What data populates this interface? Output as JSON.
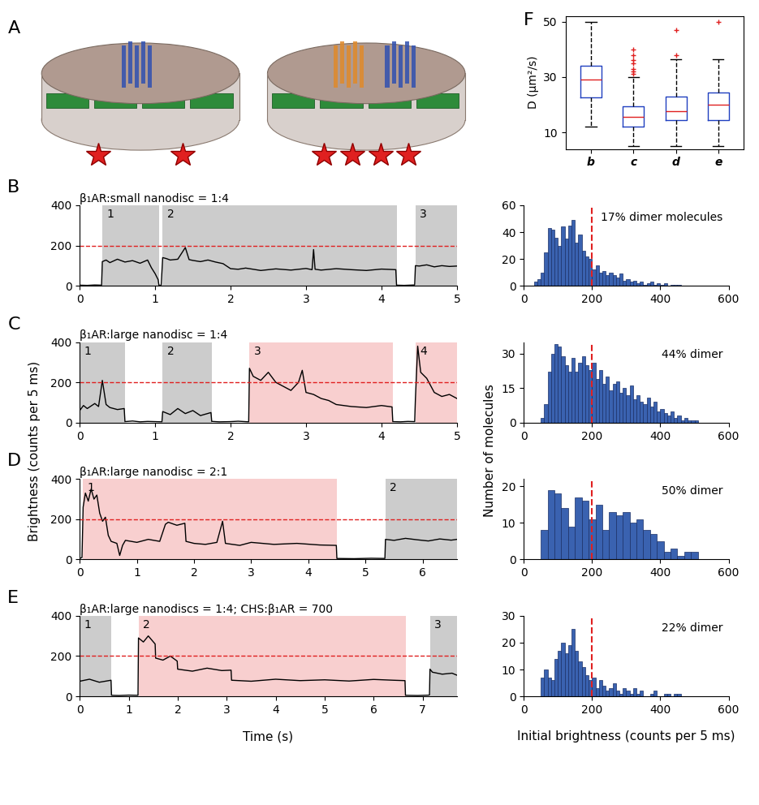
{
  "chart_data": [
    {
      "type": "diagram",
      "panel": "A"
    },
    {
      "type": "box",
      "panel": "F",
      "categories": [
        "b",
        "c",
        "d",
        "e"
      ],
      "boxes": [
        {
          "low": 12,
          "q1": 22.5,
          "median": 29,
          "q3": 34,
          "high": 50,
          "outliers": []
        },
        {
          "low": 5,
          "q1": 12,
          "median": 15.5,
          "q3": 19.5,
          "high": 30,
          "outliers": [
            31,
            32,
            33,
            35,
            36,
            38,
            40
          ]
        },
        {
          "low": 5,
          "q1": 14.5,
          "median": 17.5,
          "q3": 23,
          "high": 36.5,
          "outliers": [
            38,
            47
          ]
        },
        {
          "low": 5,
          "q1": 14.5,
          "median": 20,
          "q3": 24.5,
          "high": 36.5,
          "outliers": [
            50
          ]
        }
      ],
      "ylabel": "D (μm²/s)",
      "ylim": [
        4,
        52
      ],
      "yticks": [
        10,
        30,
        50
      ]
    },
    {
      "type": "line",
      "panel": "B",
      "title": "β₁AR:small nanodisc = 1:4",
      "color": "#000000",
      "threshold": 200,
      "x": [
        0,
        0.1,
        0.2,
        0.29,
        0.3,
        0.35,
        0.4,
        0.5,
        0.6,
        0.7,
        0.8,
        0.9,
        0.95,
        1.0,
        1.04,
        1.05,
        1.08,
        1.1,
        1.15,
        1.2,
        1.3,
        1.4,
        1.45,
        1.5,
        1.6,
        1.7,
        1.8,
        1.9,
        2.0,
        2.1,
        2.2,
        2.4,
        2.6,
        2.8,
        3.0,
        3.08,
        3.1,
        3.12,
        3.2,
        3.4,
        3.6,
        3.8,
        4.0,
        4.19,
        4.2,
        4.3,
        4.44,
        4.45,
        4.5,
        4.6,
        4.7,
        4.8,
        4.9,
        5.0
      ],
      "values": [
        3,
        2,
        4,
        3,
        120,
        128,
        115,
        132,
        118,
        125,
        112,
        128,
        90,
        60,
        30,
        3,
        2,
        140,
        135,
        128,
        132,
        190,
        130,
        126,
        120,
        128,
        118,
        110,
        85,
        82,
        88,
        76,
        84,
        78,
        86,
        80,
        180,
        82,
        78,
        85,
        80,
        76,
        83,
        80,
        3,
        2,
        4,
        100,
        98,
        104,
        94,
        100,
        96,
        98
      ],
      "regions": [
        {
          "start": 0.3,
          "end": 1.05,
          "label": "1",
          "color": "#cccccc"
        },
        {
          "start": 1.1,
          "end": 4.2,
          "label": "2",
          "color": "#cccccc"
        },
        {
          "start": 4.45,
          "end": 5.0,
          "label": "3",
          "color": "#cccccc"
        }
      ],
      "xlim": [
        0,
        5
      ],
      "xticks": [
        0,
        1,
        2,
        3,
        4,
        5
      ],
      "ylim": [
        0,
        400
      ],
      "yticks": [
        0,
        200,
        400
      ]
    },
    {
      "type": "line",
      "panel": "C",
      "title": "β₁AR:large nanodisc = 1:4",
      "color": "#000000",
      "threshold": 200,
      "x": [
        0,
        0.05,
        0.1,
        0.2,
        0.25,
        0.3,
        0.35,
        0.4,
        0.5,
        0.59,
        0.6,
        0.7,
        0.8,
        0.9,
        1.0,
        1.09,
        1.1,
        1.2,
        1.3,
        1.4,
        1.5,
        1.6,
        1.74,
        1.75,
        1.85,
        2.0,
        2.1,
        2.24,
        2.25,
        2.3,
        2.4,
        2.5,
        2.6,
        2.7,
        2.8,
        2.9,
        2.95,
        3.0,
        3.1,
        3.2,
        3.3,
        3.4,
        3.6,
        3.8,
        4.0,
        4.14,
        4.15,
        4.25,
        4.35,
        4.44,
        4.45,
        4.48,
        4.52,
        4.6,
        4.7,
        4.8,
        4.9,
        5.0
      ],
      "values": [
        60,
        85,
        70,
        95,
        80,
        210,
        90,
        75,
        65,
        70,
        5,
        8,
        4,
        6,
        5,
        4,
        55,
        40,
        70,
        45,
        60,
        35,
        50,
        6,
        4,
        5,
        7,
        4,
        270,
        230,
        210,
        250,
        200,
        180,
        160,
        200,
        260,
        150,
        140,
        120,
        110,
        90,
        80,
        75,
        85,
        78,
        5,
        4,
        6,
        5,
        120,
        380,
        250,
        220,
        150,
        130,
        140,
        120
      ],
      "regions": [
        {
          "start": 0,
          "end": 0.6,
          "label": "1",
          "color": "#cccccc"
        },
        {
          "start": 1.1,
          "end": 1.75,
          "label": "2",
          "color": "#cccccc"
        },
        {
          "start": 2.25,
          "end": 4.15,
          "label": "3",
          "color": "#f8cfcf"
        },
        {
          "start": 4.45,
          "end": 5.0,
          "label": "4",
          "color": "#f8cfcf"
        }
      ],
      "xlim": [
        0,
        5
      ],
      "xticks": [
        0,
        1,
        2,
        3,
        4,
        5
      ],
      "ylim": [
        0,
        400
      ],
      "yticks": [
        0,
        200,
        400
      ]
    },
    {
      "type": "line",
      "panel": "D",
      "title": "β₁AR:large nanodisc = 2:1",
      "color": "#000000",
      "threshold": 200,
      "x": [
        0,
        0.04,
        0.06,
        0.1,
        0.15,
        0.2,
        0.25,
        0.3,
        0.35,
        0.4,
        0.45,
        0.5,
        0.55,
        0.6,
        0.65,
        0.7,
        0.75,
        0.8,
        1.0,
        1.2,
        1.4,
        1.5,
        1.55,
        1.7,
        1.84,
        1.86,
        2.0,
        2.2,
        2.4,
        2.5,
        2.55,
        2.8,
        3.0,
        3.4,
        3.8,
        4.2,
        4.49,
        4.5,
        4.8,
        5.1,
        5.34,
        5.35,
        5.5,
        5.7,
        5.9,
        6.1,
        6.3,
        6.5,
        6.6
      ],
      "values": [
        5,
        10,
        260,
        330,
        290,
        350,
        300,
        320,
        230,
        190,
        210,
        120,
        90,
        85,
        80,
        20,
        70,
        95,
        85,
        100,
        90,
        175,
        185,
        170,
        180,
        90,
        80,
        75,
        85,
        190,
        80,
        70,
        85,
        75,
        80,
        72,
        70,
        5,
        4,
        6,
        5,
        100,
        95,
        105,
        98,
        92,
        102,
        96,
        100
      ],
      "regions": [
        {
          "start": 0.05,
          "end": 4.5,
          "label": "1",
          "color": "#f8cfcf"
        },
        {
          "start": 5.35,
          "end": 6.6,
          "label": "2",
          "color": "#cccccc"
        }
      ],
      "xlim": [
        0,
        6.6
      ],
      "xticks": [
        0,
        1,
        2,
        3,
        4,
        5,
        6
      ],
      "ylim": [
        0,
        400
      ],
      "yticks": [
        0,
        200,
        400
      ]
    },
    {
      "type": "line",
      "panel": "E",
      "title": "β₁AR:large nanodiscs = 1:4; CHS:β₁AR = 700",
      "color": "#000000",
      "threshold": 200,
      "x": [
        0,
        0.2,
        0.4,
        0.64,
        0.65,
        0.8,
        1.0,
        1.19,
        1.2,
        1.3,
        1.4,
        1.54,
        1.55,
        1.7,
        1.85,
        1.99,
        2.0,
        2.3,
        2.6,
        2.9,
        3.09,
        3.1,
        3.5,
        4.0,
        4.5,
        5.0,
        5.5,
        6.0,
        6.4,
        6.64,
        6.65,
        6.9,
        7.14,
        7.15,
        7.2,
        7.4,
        7.6,
        7.7
      ],
      "values": [
        75,
        85,
        70,
        80,
        5,
        4,
        6,
        5,
        290,
        270,
        300,
        260,
        190,
        180,
        200,
        175,
        135,
        125,
        140,
        128,
        130,
        80,
        75,
        85,
        78,
        82,
        76,
        84,
        80,
        78,
        5,
        4,
        6,
        135,
        120,
        110,
        115,
        105
      ],
      "regions": [
        {
          "start": 0,
          "end": 0.65,
          "label": "1",
          "color": "#cccccc"
        },
        {
          "start": 1.2,
          "end": 6.65,
          "label": "2",
          "color": "#f8cfcf"
        },
        {
          "start": 7.15,
          "end": 7.7,
          "label": "3",
          "color": "#cccccc"
        }
      ],
      "xlim": [
        0,
        7.7
      ],
      "xticks": [
        0,
        1,
        2,
        3,
        4,
        5,
        6,
        7
      ],
      "ylim": [
        0,
        400
      ],
      "yticks": [
        0,
        200,
        400
      ]
    },
    {
      "type": "histogram",
      "annotation": "17% dimer molecules",
      "color": "#3a62b0",
      "threshold": 200,
      "bins": [
        30,
        40,
        50,
        60,
        70,
        80,
        90,
        100,
        110,
        120,
        130,
        140,
        150,
        160,
        170,
        180,
        190,
        200,
        210,
        220,
        230,
        240,
        250,
        260,
        270,
        280,
        290,
        300,
        310,
        320,
        330,
        340,
        350,
        360,
        370,
        380,
        390,
        400,
        410,
        420,
        430,
        440,
        450,
        460
      ],
      "counts": [
        3,
        5,
        10,
        25,
        43,
        42,
        36,
        30,
        44,
        35,
        45,
        49,
        32,
        38,
        26,
        22,
        20,
        12,
        15,
        10,
        11,
        8,
        10,
        8,
        6,
        9,
        4,
        5,
        3,
        4,
        2,
        3,
        1,
        2,
        3,
        1,
        2,
        1,
        2,
        0,
        1,
        1,
        1
      ],
      "xlim": [
        0,
        600
      ],
      "xticks": [
        0,
        200,
        400,
        600
      ],
      "ylim": [
        0,
        60
      ],
      "yticks": [
        0,
        20,
        40,
        60
      ]
    },
    {
      "type": "histogram",
      "annotation": "44% dimer",
      "color": "#3a62b0",
      "threshold": 200,
      "bins": [
        50,
        60,
        70,
        80,
        90,
        100,
        110,
        120,
        130,
        140,
        150,
        160,
        170,
        180,
        190,
        200,
        210,
        220,
        230,
        240,
        250,
        260,
        270,
        280,
        290,
        300,
        310,
        320,
        330,
        340,
        350,
        360,
        370,
        380,
        390,
        400,
        410,
        420,
        430,
        440,
        450,
        460,
        470,
        480,
        490,
        500,
        510
      ],
      "counts": [
        2,
        8,
        22,
        30,
        34,
        33,
        29,
        25,
        22,
        28,
        22,
        26,
        29,
        25,
        23,
        26,
        19,
        23,
        17,
        20,
        14,
        17,
        18,
        13,
        15,
        12,
        16,
        10,
        12,
        9,
        8,
        11,
        7,
        9,
        5,
        6,
        4,
        3,
        5,
        2,
        3,
        1,
        2,
        1,
        1,
        1
      ],
      "xlim": [
        0,
        600
      ],
      "xticks": [
        0,
        200,
        400,
        600
      ],
      "ylim": [
        0,
        35
      ],
      "yticks": [
        0,
        15,
        30
      ]
    },
    {
      "type": "histogram",
      "annotation": "50% dimer",
      "color": "#3a62b0",
      "threshold": 200,
      "bins": [
        50,
        70,
        90,
        110,
        130,
        150,
        170,
        190,
        210,
        230,
        250,
        270,
        290,
        310,
        330,
        350,
        370,
        390,
        410,
        430,
        450,
        470,
        490,
        510
      ],
      "counts": [
        8,
        19,
        18,
        14,
        9,
        17,
        16,
        11,
        15,
        8,
        13,
        12,
        13,
        10,
        11,
        8,
        7,
        5,
        2,
        3,
        1,
        2,
        2
      ],
      "xlim": [
        0,
        600
      ],
      "xticks": [
        0,
        200,
        400,
        600
      ],
      "ylim": [
        0,
        22
      ],
      "yticks": [
        0,
        10,
        20
      ]
    },
    {
      "type": "histogram",
      "annotation": "22% dimer",
      "color": "#3a62b0",
      "threshold": 200,
      "bins": [
        50,
        60,
        70,
        80,
        90,
        100,
        110,
        120,
        130,
        140,
        150,
        160,
        170,
        180,
        190,
        200,
        210,
        220,
        230,
        240,
        250,
        260,
        270,
        280,
        290,
        300,
        310,
        320,
        330,
        340,
        350,
        360,
        370,
        380,
        390,
        400,
        410,
        420,
        430,
        440,
        450,
        460
      ],
      "counts": [
        7,
        10,
        7,
        6,
        14,
        17,
        20,
        16,
        19,
        25,
        17,
        13,
        11,
        8,
        6,
        7,
        3,
        6,
        4,
        2,
        3,
        5,
        2,
        1,
        3,
        2,
        1,
        3,
        1,
        2,
        0,
        0,
        1,
        2,
        0,
        0,
        1,
        1,
        0,
        1,
        1
      ],
      "xlim": [
        0,
        600
      ],
      "xticks": [
        0,
        200,
        400,
        600
      ],
      "ylim": [
        0,
        30
      ],
      "yticks": [
        0,
        10,
        20,
        30
      ]
    }
  ],
  "shared_labels": {
    "trace_ylabel": "Brightness (counts per 5 ms)",
    "trace_xlabel": "Time (s)",
    "hist_ylabel": "Number of molecules",
    "hist_xlabel": "Initial brightness (counts per 5 ms)"
  }
}
